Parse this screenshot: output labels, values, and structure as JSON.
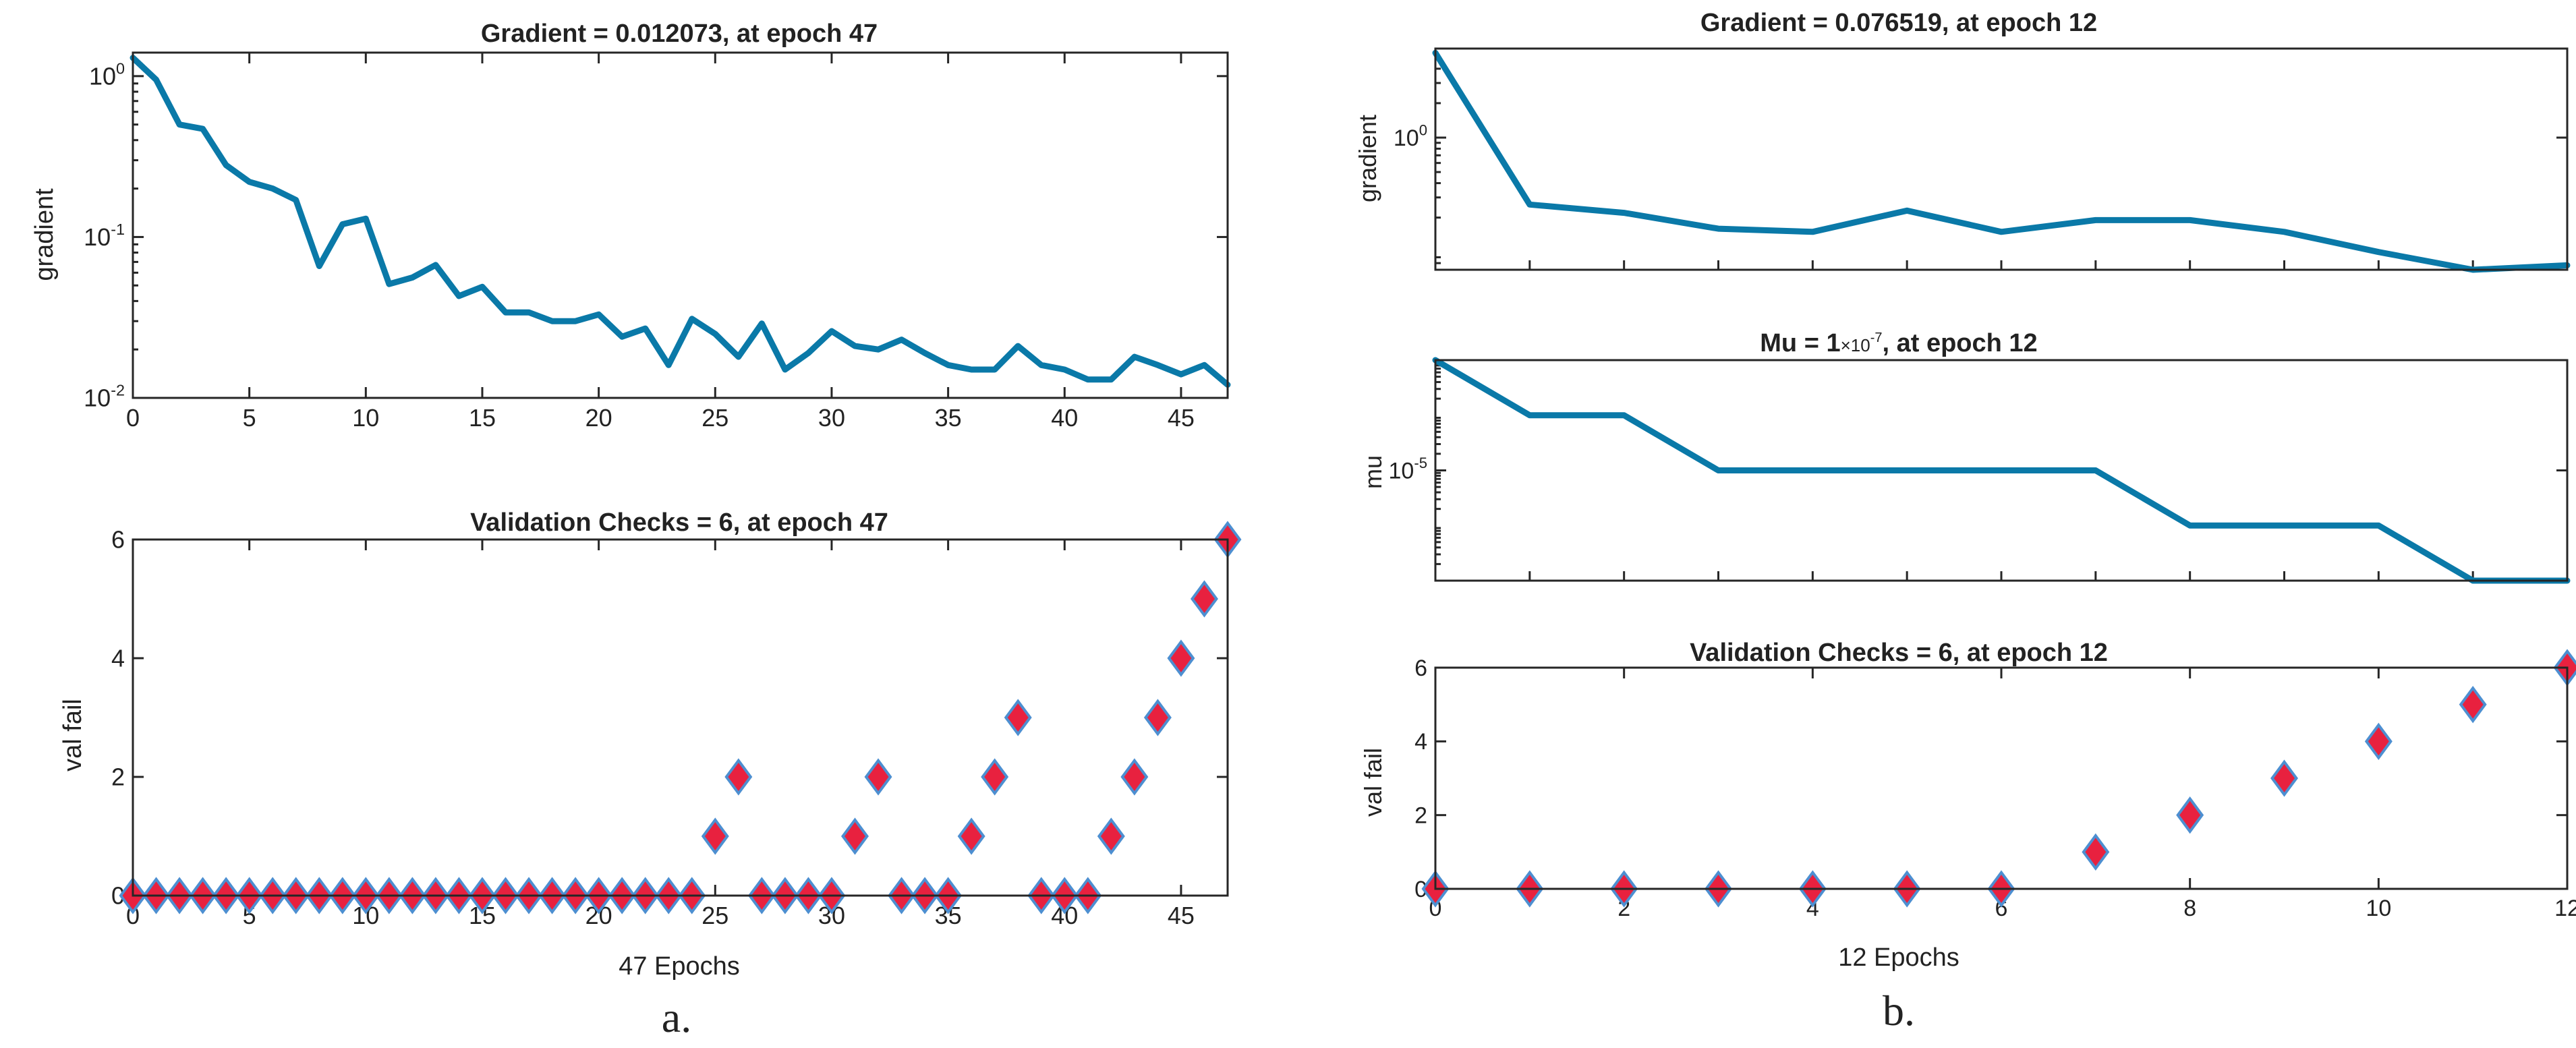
{
  "panels": [
    {
      "letter": "a.",
      "plots": [
        {
          "id": "a-gradient",
          "title": "Gradient = 0.012073, at epoch 47",
          "ylabel": "gradient",
          "xlabel": "",
          "show_xticklabels": false
        },
        {
          "id": "a-valfail",
          "title": "Validation Checks = 6, at epoch 47",
          "ylabel": "val fail",
          "xlabel": "47 Epochs",
          "show_xticklabels": true
        }
      ]
    },
    {
      "letter": "b.",
      "plots": [
        {
          "id": "b-gradient",
          "title": "Gradient = 0.076519, at epoch 12",
          "ylabel": "gradient",
          "xlabel": "",
          "show_xticklabels": false
        },
        {
          "id": "b-mu",
          "title_main": "Mu = 1",
          "title_exp_base": "×10",
          "title_exp_power": "-7",
          "title_tail": ", at epoch 12",
          "ylabel": "mu",
          "xlabel": "",
          "show_xticklabels": false
        },
        {
          "id": "b-valfail",
          "title": "Validation Checks = 6, at epoch 12",
          "ylabel": "val fail",
          "xlabel": "12 Epochs",
          "show_xticklabels": true
        }
      ]
    }
  ],
  "colors": {
    "line": "#0a79a8",
    "marker_fill": "#e8213f",
    "marker_stroke": "#4d8fd1",
    "axis": "#262626"
  },
  "chart_data": [
    {
      "id": "a-gradient",
      "type": "line",
      "title": "Gradient = 0.012073, at epoch 47",
      "ylabel": "gradient",
      "xlabel": "",
      "yscale": "log",
      "xlim": [
        0,
        47
      ],
      "ylim": [
        0.01,
        1.4
      ],
      "xticks": [
        0,
        5,
        10,
        15,
        20,
        25,
        30,
        35,
        40,
        45
      ],
      "yticks": [
        0.01,
        0.1,
        1
      ],
      "ytick_labels": [
        {
          "base": "10",
          "exp": "-2"
        },
        {
          "base": "10",
          "exp": "-1"
        },
        {
          "base": "10",
          "exp": "0"
        }
      ],
      "x": [
        0,
        1,
        2,
        3,
        4,
        5,
        6,
        7,
        8,
        9,
        10,
        11,
        12,
        13,
        14,
        15,
        16,
        17,
        18,
        19,
        20,
        21,
        22,
        23,
        24,
        25,
        26,
        27,
        28,
        29,
        30,
        31,
        32,
        33,
        34,
        35,
        36,
        37,
        38,
        39,
        40,
        41,
        42,
        43,
        44,
        45,
        46,
        47
      ],
      "y": [
        1.3,
        0.95,
        0.5,
        0.47,
        0.28,
        0.22,
        0.2,
        0.17,
        0.066,
        0.12,
        0.13,
        0.051,
        0.056,
        0.067,
        0.043,
        0.049,
        0.034,
        0.034,
        0.03,
        0.03,
        0.033,
        0.024,
        0.027,
        0.016,
        0.031,
        0.025,
        0.018,
        0.029,
        0.015,
        0.019,
        0.026,
        0.021,
        0.02,
        0.023,
        0.019,
        0.016,
        0.015,
        0.015,
        0.021,
        0.016,
        0.015,
        0.013,
        0.013,
        0.018,
        0.016,
        0.014,
        0.016,
        0.012073
      ]
    },
    {
      "id": "a-valfail",
      "type": "scatter",
      "title": "Validation Checks = 6, at epoch 47",
      "ylabel": "val fail",
      "xlabel": "47 Epochs",
      "xlim": [
        0,
        47
      ],
      "ylim": [
        0,
        6
      ],
      "xticks": [
        0,
        5,
        10,
        15,
        20,
        25,
        30,
        35,
        40,
        45
      ],
      "yticks": [
        0,
        2,
        4,
        6
      ],
      "x": [
        0,
        1,
        2,
        3,
        4,
        5,
        6,
        7,
        8,
        9,
        10,
        11,
        12,
        13,
        14,
        15,
        16,
        17,
        18,
        19,
        20,
        21,
        22,
        23,
        24,
        25,
        26,
        27,
        28,
        29,
        30,
        31,
        32,
        33,
        34,
        35,
        36,
        37,
        38,
        39,
        40,
        41,
        42,
        43,
        44,
        45,
        46,
        47
      ],
      "y": [
        0,
        0,
        0,
        0,
        0,
        0,
        0,
        0,
        0,
        0,
        0,
        0,
        0,
        0,
        0,
        0,
        0,
        0,
        0,
        0,
        0,
        0,
        0,
        0,
        0,
        1,
        2,
        0,
        0,
        0,
        0,
        1,
        2,
        0,
        0,
        0,
        1,
        2,
        3,
        0,
        0,
        0,
        1,
        2,
        3,
        4,
        5,
        6
      ]
    },
    {
      "id": "b-gradient",
      "type": "line",
      "title": "Gradient = 0.076519, at epoch 12",
      "ylabel": "gradient",
      "xlabel": "",
      "yscale": "log",
      "xlim": [
        0,
        12
      ],
      "ylim": [
        0.07,
        6
      ],
      "yticks": [
        1
      ],
      "ytick_labels": [
        {
          "base": "10",
          "exp": "0"
        }
      ],
      "x": [
        0,
        1,
        2,
        3,
        4,
        5,
        6,
        7,
        8,
        9,
        10,
        11,
        12
      ],
      "y": [
        5.5,
        0.26,
        0.22,
        0.16,
        0.15,
        0.23,
        0.15,
        0.19,
        0.19,
        0.15,
        0.1,
        0.07,
        0.076519
      ]
    },
    {
      "id": "b-mu",
      "type": "line",
      "title": "Mu = 1×10-7, at epoch 12",
      "ylabel": "mu",
      "xlabel": "",
      "yscale": "log",
      "xlim": [
        0,
        12
      ],
      "ylim": [
        1e-07,
        0.001
      ],
      "yticks": [
        1e-05
      ],
      "ytick_labels": [
        {
          "base": "10",
          "exp": "-5"
        }
      ],
      "x": [
        0,
        1,
        2,
        3,
        4,
        5,
        6,
        7,
        8,
        9,
        10,
        11,
        12
      ],
      "y": [
        0.001,
        0.0001,
        0.0001,
        1e-05,
        1e-05,
        1e-05,
        1e-05,
        1e-05,
        1e-06,
        1e-06,
        1e-06,
        1e-07,
        1e-07
      ]
    },
    {
      "id": "b-valfail",
      "type": "scatter",
      "title": "Validation Checks = 6, at epoch 12",
      "ylabel": "val fail",
      "xlabel": "12 Epochs",
      "xlim": [
        0,
        12
      ],
      "ylim": [
        0,
        6
      ],
      "xticks": [
        0,
        2,
        4,
        6,
        8,
        10,
        12
      ],
      "yticks": [
        0,
        2,
        4,
        6
      ],
      "x": [
        0,
        1,
        2,
        3,
        4,
        5,
        6,
        7,
        8,
        9,
        10,
        11,
        12
      ],
      "y": [
        0,
        0,
        0,
        0,
        0,
        0,
        0,
        1,
        2,
        3,
        4,
        5,
        6
      ]
    }
  ]
}
